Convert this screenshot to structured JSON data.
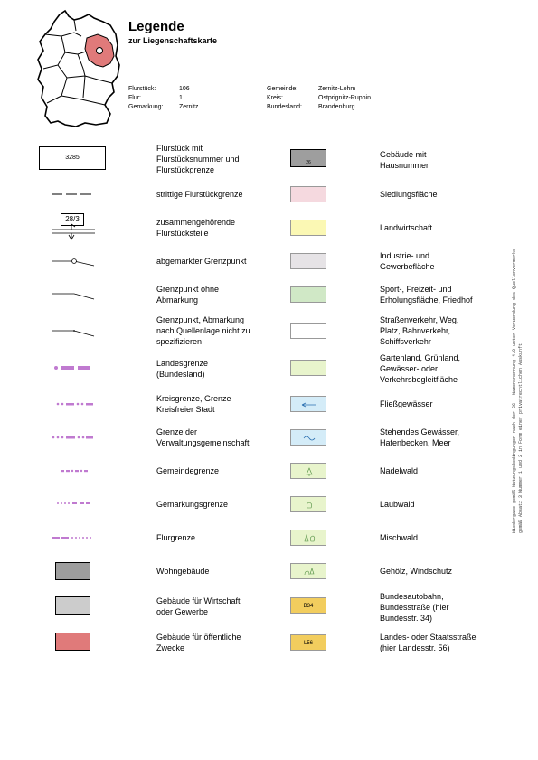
{
  "header": {
    "title": "Legende",
    "subtitle": "zur Liegenschaftskarte"
  },
  "meta_left": [
    {
      "key": "Flurstück:",
      "value": "106"
    },
    {
      "key": "Flur:",
      "value": "1"
    },
    {
      "key": "Gemarkung:",
      "value": "Zernitz"
    }
  ],
  "meta_right": [
    {
      "key": "Gemeinde:",
      "value": "Zernitz-Lohm"
    },
    {
      "key": "Kreis:",
      "value": "Ostprignitz-Ruppin"
    },
    {
      "key": "Bundesland:",
      "value": "Brandenburg"
    }
  ],
  "left_col": {
    "flurstueck_box": "3285",
    "bruch_oben": "28/3",
    "items": [
      "Flurstück mit\nFlurstücksnummer und\nFlurstückgrenze",
      "strittige Flurstückgrenze",
      "zusammengehörende\nFlurstücksteile",
      "abgemarkter Grenzpunkt",
      "Grenzpunkt ohne\nAbmarkung",
      "Grenzpunkt, Abmarkung\nnach Quellenlage nicht zu\nspezifizieren",
      "Landesgrenze\n(Bundesland)",
      "Kreisgrenze, Grenze\nKreisfreier Stadt",
      "Grenze der\nVerwaltungsgemeinschaft",
      "Gemeindegrenze",
      "Gemarkungsgrenze",
      "Flurgrenze",
      "Wohngebäude",
      "Gebäude für Wirtschaft\noder Gewerbe",
      "Gebäude für öffentliche\nZwecke"
    ]
  },
  "right_col": {
    "hausnummer": "26",
    "bab": "B34",
    "landstr": "L56",
    "items": [
      "Gebäude mit\nHausnummer",
      "Siedlungsfläche",
      "Landwirtschaft",
      "Industrie- und\nGewerbefläche",
      "Sport-, Freizeit- und\nErholungsfläche, Friedhof",
      "Straßenverkehr, Weg,\nPlatz, Bahnverkehr,\nSchiffsverkehr",
      "Gartenland, Grünland,\nGewässer- oder\nVerkehrsbegleitfläche",
      "Fließgewässer",
      "Stehendes Gewässer,\nHafenbecken, Meer",
      "Nadelwald",
      "Laubwald",
      "Mischwald",
      "Gehölz, Windschutz",
      "Bundesautobahn,\nBundesstraße (hier\nBundesstr. 34)",
      "Landes- oder Staatsstraße\n(hier Landesstr. 56)"
    ]
  },
  "colors": {
    "building_dark": "#9e9e9e",
    "building_grey": "#cccccc",
    "building_red": "#e07a7a",
    "siedlung": "#f5d9df",
    "landwirtschaft": "#fbf8b4",
    "industrie": "#e6e3e6",
    "sport": "#d0e8c6",
    "verkehr": "#ffffff",
    "garten": "#e8f4cc",
    "wasser": "#d4ecf8",
    "wald": "#e8f4cc",
    "strasse": "#f2cd5e",
    "boundary": "#c07ad0"
  },
  "side_note": "Wiedergabe gemäß Nutzungsbedingungen nach der CC - Namensnennung 4.0 unter Verwendung des Quellenvermerks gemäß Absatz 3 Nummer 1 und 2 in Form einer privatrechtlichen Auskunft."
}
